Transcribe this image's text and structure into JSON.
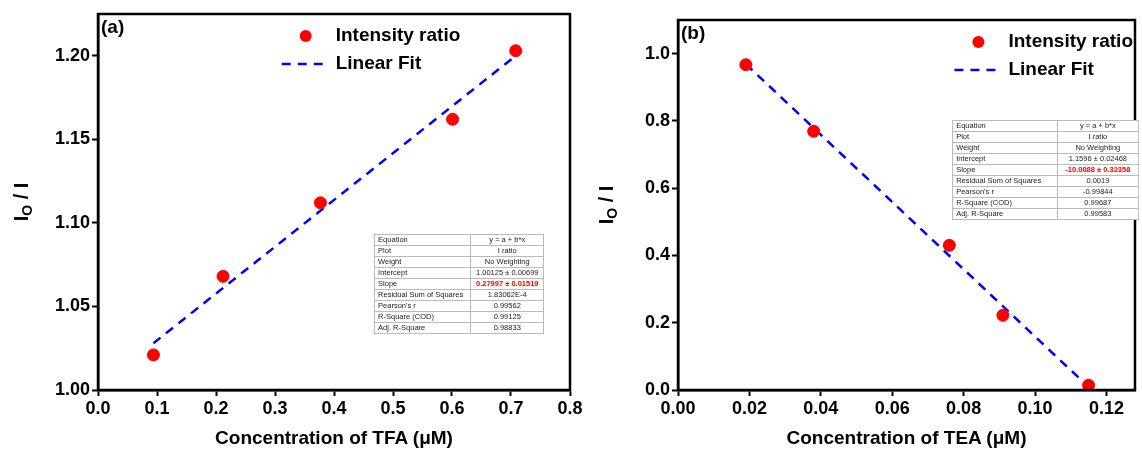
{
  "chart_data": [
    {
      "type": "scatter",
      "title": "(a)",
      "xlabel": "Concentration of TFA (μM)",
      "ylabel": "I$_{O}$ / I",
      "xlim": [
        0,
        0.8
      ],
      "xticks": [
        {
          "value": 0,
          "label": "0.0"
        },
        0.1,
        0.2,
        0.3,
        0.4,
        0.5,
        0.6,
        0.7,
        0.8
      ],
      "ylim": [
        1.0,
        1.225
      ],
      "yticks": [
        {
          "value": 1.0,
          "label": "1.00"
        },
        1.05,
        {
          "value": 1.1,
          "label": "1.10"
        },
        1.15,
        {
          "value": 1.2,
          "label": "1.20"
        }
      ],
      "grid": false,
      "legend": "top",
      "series": [
        {
          "name": "Intensity ratio",
          "marker": "circle",
          "color": "#ff0000",
          "x": [
            0.094,
            0.212,
            0.377,
            0.601,
            0.708
          ],
          "values": [
            1.021,
            1.068,
            1.112,
            1.162,
            1.203
          ]
        },
        {
          "name": "Linear Fit",
          "type": "line",
          "marker": "none",
          "line_style": "dashed",
          "color": "#0000ff",
          "x": [
            0.094,
            0.708
          ],
          "values": [
            1.028,
            1.2
          ]
        }
      ],
      "annotations": [
        "Equation",
        "y = a + b*x",
        "Plot",
        "I ratio",
        "Weight",
        "No Weighting",
        "Intercept",
        "1.00125 ± 0.00699",
        "Slope",
        "0.27997 ± 0.01519",
        "Residual Sum of Squares",
        "1.83062E-4",
        "Pearson's r",
        "0.99562",
        "R-Square (COD)",
        "0.99125",
        "Adj. R-Square",
        "0.98833"
      ]
    },
    {
      "type": "scatter",
      "title": "(b)",
      "xlabel": "Concentration of TEA (μM)",
      "ylabel": "I$_{O}$ / I",
      "xlim": [
        0,
        0.128
      ],
      "xticks": [
        {
          "value": 0,
          "label": "0.00"
        },
        {
          "value": 0.02,
          "label": "0.02"
        },
        {
          "value": 0.04,
          "label": "0.04"
        },
        {
          "value": 0.06,
          "label": "0.06"
        },
        {
          "value": 0.08,
          "label": "0.08"
        },
        {
          "value": 0.1,
          "label": "0.10"
        },
        {
          "value": 0.12,
          "label": "0.12"
        }
      ],
      "ylim": [
        0,
        1.1
      ],
      "yticks": [
        {
          "value": 0,
          "label": "0.0"
        },
        0.2,
        0.4,
        0.6,
        0.8,
        {
          "value": 1.0,
          "label": "1.0"
        }
      ],
      "grid": false,
      "legend": "top right",
      "series": [
        {
          "name": "Intensity ratio",
          "marker": "circle",
          "color": "#ff0000",
          "x": [
            0.019,
            0.038,
            0.076,
            0.091,
            0.115
          ],
          "values": [
            0.967,
            0.769,
            0.43,
            0.222,
            0.014
          ]
        },
        {
          "name": "Linear Fit",
          "type": "line",
          "marker": "none",
          "line_style": "dashed",
          "color": "#0000ff",
          "x": [
            0.019,
            0.114
          ],
          "values": [
            0.969,
            0.019
          ]
        }
      ],
      "annotations": [
        "Equation",
        "y = a + b*x",
        "Plot",
        "I ratio",
        "Weight",
        "No Weighting",
        "Intercept",
        "1.1596 ± 0.02468",
        "Slope",
        "-10.0088 ± 0.32358",
        "Residual Sum of Squares",
        "0.0019",
        "Pearson's r",
        "-0.99844",
        "R-Square (COD)",
        "0.99687",
        "Adj. R-Square",
        "0.99583"
      ]
    }
  ]
}
